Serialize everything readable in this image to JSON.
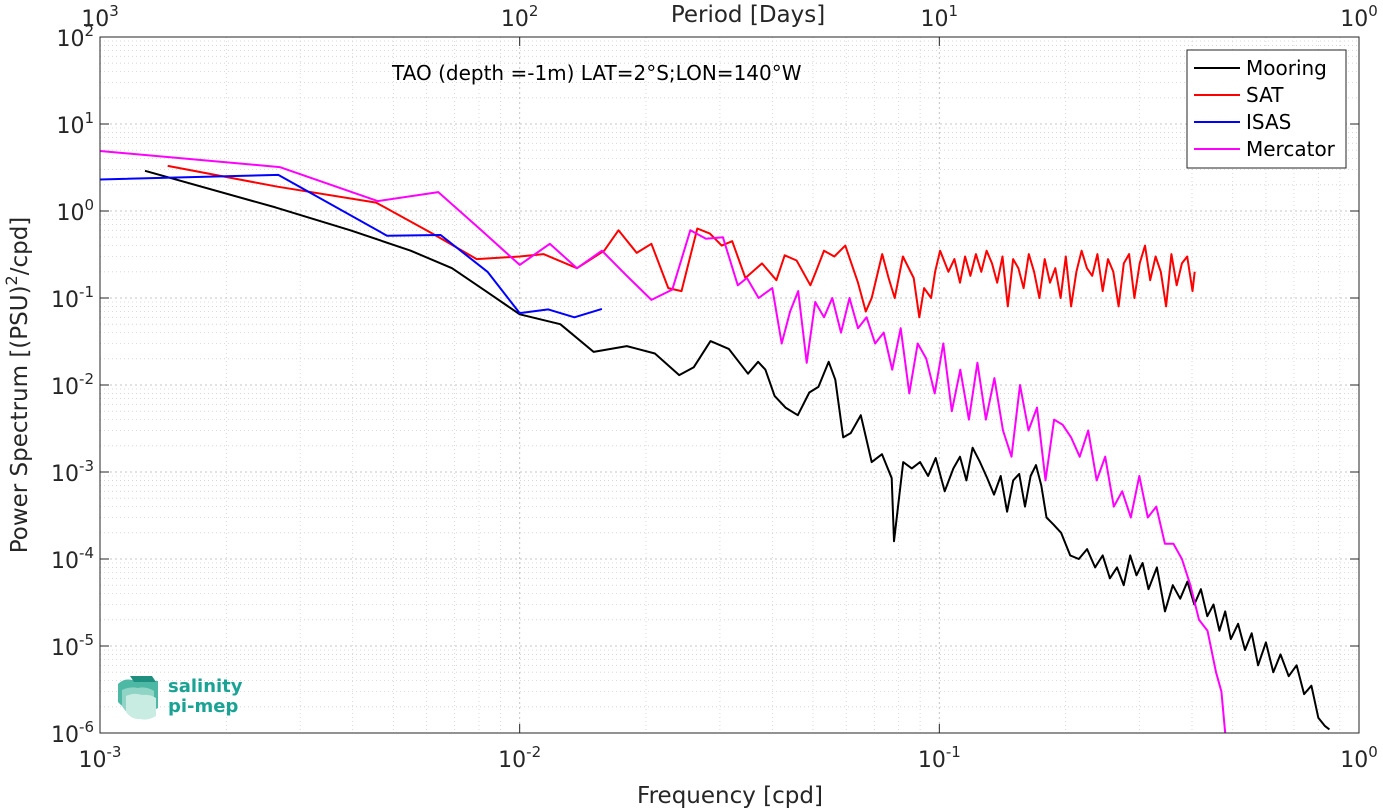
{
  "chart_data": {
    "type": "line",
    "title": "TAO (depth =-1m) LAT=2°S;LON=140°W",
    "xlabel": "Frequency [cpd]",
    "ylabel": "Power Spectrum [(PSU)²/cpd]",
    "top_xlabel": "Period [Days]",
    "x_scale": "log",
    "y_scale": "log",
    "xlim": [
      0.001,
      1
    ],
    "ylim": [
      1e-06,
      100
    ],
    "grid": true,
    "legend_position": "top-right",
    "x_ticks": [
      {
        "value": 0.001,
        "base": "10",
        "exp": "-3"
      },
      {
        "value": 0.01,
        "base": "10",
        "exp": "-2"
      },
      {
        "value": 0.1,
        "base": "10",
        "exp": "-1"
      },
      {
        "value": 1,
        "base": "10",
        "exp": "0"
      }
    ],
    "top_ticks": [
      {
        "value": 1000,
        "base": "10",
        "exp": "3"
      },
      {
        "value": 100,
        "base": "10",
        "exp": "2"
      },
      {
        "value": 10,
        "base": "10",
        "exp": "1"
      },
      {
        "value": 1,
        "base": "10",
        "exp": "0"
      }
    ],
    "y_ticks": [
      {
        "value": 1e-06,
        "base": "10",
        "exp": "-6"
      },
      {
        "value": 1e-05,
        "base": "10",
        "exp": "-5"
      },
      {
        "value": 0.0001,
        "base": "10",
        "exp": "-4"
      },
      {
        "value": 0.001,
        "base": "10",
        "exp": "-3"
      },
      {
        "value": 0.01,
        "base": "10",
        "exp": "-2"
      },
      {
        "value": 0.1,
        "base": "10",
        "exp": "-1"
      },
      {
        "value": 1,
        "base": "10",
        "exp": "0"
      },
      {
        "value": 10,
        "base": "10",
        "exp": "1"
      },
      {
        "value": 100,
        "base": "10",
        "exp": "2"
      }
    ],
    "series": [
      {
        "name": "Mooring",
        "color": "#000000",
        "x": [
          0.00128,
          0.00262,
          0.00395,
          0.0055,
          0.0069,
          0.0083,
          0.01,
          0.0125,
          0.015,
          0.018,
          0.021,
          0.024,
          0.026,
          0.0285,
          0.0315,
          0.035,
          0.037,
          0.0385,
          0.0405,
          0.043,
          0.046,
          0.049,
          0.0515,
          0.0545,
          0.0565,
          0.059,
          0.0615,
          0.065,
          0.069,
          0.073,
          0.077,
          0.078,
          0.082,
          0.086,
          0.09,
          0.094,
          0.098,
          0.103,
          0.108,
          0.112,
          0.116,
          0.12,
          0.125,
          0.13,
          0.135,
          0.14,
          0.145,
          0.15,
          0.155,
          0.16,
          0.165,
          0.17,
          0.175,
          0.18,
          0.187,
          0.195,
          0.205,
          0.215,
          0.225,
          0.235,
          0.245,
          0.255,
          0.265,
          0.275,
          0.285,
          0.295,
          0.305,
          0.315,
          0.33,
          0.345,
          0.36,
          0.375,
          0.39,
          0.405,
          0.42,
          0.435,
          0.45,
          0.465,
          0.48,
          0.495,
          0.515,
          0.535,
          0.555,
          0.575,
          0.6,
          0.625,
          0.65,
          0.68,
          0.71,
          0.74,
          0.77,
          0.8,
          0.83,
          0.85
        ],
        "values": [
          2.9,
          1.1,
          0.6,
          0.35,
          0.22,
          0.12,
          0.065,
          0.05,
          0.024,
          0.028,
          0.023,
          0.013,
          0.016,
          0.032,
          0.026,
          0.0135,
          0.0185,
          0.015,
          0.0075,
          0.0055,
          0.0045,
          0.0082,
          0.0095,
          0.0185,
          0.0115,
          0.0025,
          0.0028,
          0.0045,
          0.0013,
          0.0016,
          0.00085,
          0.00016,
          0.0013,
          0.0011,
          0.0013,
          0.0009,
          0.00145,
          0.0006,
          0.0011,
          0.0015,
          0.0008,
          0.0019,
          0.0013,
          0.00085,
          0.00055,
          0.0009,
          0.00035,
          0.0008,
          0.00095,
          0.0004,
          0.0009,
          0.0012,
          0.0007,
          0.0003,
          0.00025,
          0.0002,
          0.00011,
          0.0001,
          0.00013,
          8e-05,
          0.00011,
          6e-05,
          8e-05,
          5e-05,
          0.00011,
          6.5e-05,
          9e-05,
          4.5e-05,
          8e-05,
          2.5e-05,
          5e-05,
          3.5e-05,
          5.5e-05,
          3e-05,
          4.5e-05,
          2.2e-05,
          3e-05,
          1.5e-05,
          2.5e-05,
          1.2e-05,
          1.8e-05,
          9e-06,
          1.4e-05,
          6e-06,
          1.1e-05,
          5e-06,
          8e-06,
          4.5e-06,
          6e-06,
          2.8e-06,
          3.5e-06,
          1.5e-06,
          1.2e-06,
          1.1e-06
        ]
      },
      {
        "name": "SAT",
        "color": "#ff0000",
        "x": [
          0.00145,
          0.00265,
          0.00455,
          0.0062,
          0.0079,
          0.01,
          0.0114,
          0.0137,
          0.0159,
          0.0172,
          0.019,
          0.0206,
          0.0226,
          0.0243,
          0.0265,
          0.0284,
          0.0303,
          0.0321,
          0.0345,
          0.0378,
          0.0409,
          0.0428,
          0.0457,
          0.0493,
          0.0508,
          0.0531,
          0.0562,
          0.0597,
          0.064,
          0.0668,
          0.069,
          0.0731,
          0.0757,
          0.0783,
          0.0819,
          0.0869,
          0.0896,
          0.092,
          0.0956,
          0.0977,
          0.1004,
          0.1051,
          0.1086,
          0.112,
          0.1152,
          0.1186,
          0.1222,
          0.1259,
          0.1296,
          0.1335,
          0.1374,
          0.1414,
          0.1456,
          0.1499,
          0.1543,
          0.1588,
          0.1634,
          0.1682,
          0.1732,
          0.1783,
          0.1835,
          0.1889,
          0.1945,
          0.2002,
          0.206,
          0.2121,
          0.2183,
          0.2247,
          0.2313,
          0.2381,
          0.2451,
          0.2523,
          0.2597,
          0.2674,
          0.2752,
          0.2833,
          0.2916,
          0.3002,
          0.309,
          0.3181,
          0.3275,
          0.3371,
          0.347,
          0.3572,
          0.3677,
          0.3785,
          0.3897,
          0.4011,
          0.406
        ],
        "values": [
          3.3,
          1.9,
          1.25,
          0.55,
          0.28,
          0.3,
          0.32,
          0.22,
          0.35,
          0.6,
          0.33,
          0.42,
          0.13,
          0.12,
          0.63,
          0.55,
          0.4,
          0.45,
          0.17,
          0.25,
          0.16,
          0.31,
          0.27,
          0.14,
          0.2,
          0.35,
          0.3,
          0.4,
          0.15,
          0.07,
          0.1,
          0.32,
          0.17,
          0.1,
          0.3,
          0.17,
          0.06,
          0.13,
          0.1,
          0.2,
          0.35,
          0.2,
          0.28,
          0.15,
          0.3,
          0.18,
          0.32,
          0.2,
          0.35,
          0.25,
          0.15,
          0.3,
          0.08,
          0.28,
          0.22,
          0.13,
          0.32,
          0.2,
          0.1,
          0.28,
          0.15,
          0.22,
          0.1,
          0.3,
          0.08,
          0.2,
          0.35,
          0.22,
          0.18,
          0.32,
          0.12,
          0.28,
          0.2,
          0.08,
          0.25,
          0.32,
          0.1,
          0.25,
          0.4,
          0.16,
          0.3,
          0.2,
          0.08,
          0.32,
          0.14,
          0.25,
          0.3,
          0.12,
          0.2
        ]
      },
      {
        "name": "ISAS",
        "color": "#0000ff",
        "x": [
          0.001,
          0.00266,
          0.00483,
          0.00648,
          0.00838,
          0.01,
          0.0117,
          0.0135,
          0.0157
        ],
        "values": [
          2.3,
          2.6,
          0.52,
          0.53,
          0.2,
          0.067,
          0.074,
          0.06,
          0.075
        ]
      },
      {
        "name": "Mercator",
        "color": "#ff00ff",
        "x": [
          0.001,
          0.00268,
          0.00459,
          0.0064,
          0.0081,
          0.01,
          0.0118,
          0.0137,
          0.0157,
          0.018,
          0.0206,
          0.0231,
          0.0255,
          0.0278,
          0.0305,
          0.0331,
          0.0348,
          0.0371,
          0.04,
          0.0421,
          0.0441,
          0.0461,
          0.0483,
          0.0506,
          0.0531,
          0.0556,
          0.0583,
          0.0611,
          0.064,
          0.0671,
          0.0703,
          0.0737,
          0.0772,
          0.0809,
          0.0848,
          0.0888,
          0.0931,
          0.0975,
          0.1022,
          0.1071,
          0.1122,
          0.1176,
          0.1232,
          0.1291,
          0.1353,
          0.1418,
          0.1486,
          0.1557,
          0.1631,
          0.1709,
          0.1791,
          0.1877,
          0.1967,
          0.2061,
          0.216,
          0.2263,
          0.2371,
          0.2485,
          0.2604,
          0.2728,
          0.2859,
          0.2996,
          0.3139,
          0.3289,
          0.3447,
          0.3612,
          0.3785,
          0.3966,
          0.4156,
          0.4355,
          0.4563,
          0.47,
          0.48
        ],
        "values": [
          4.9,
          3.2,
          1.3,
          1.65,
          0.6,
          0.24,
          0.42,
          0.22,
          0.35,
          0.18,
          0.095,
          0.125,
          0.6,
          0.48,
          0.5,
          0.14,
          0.17,
          0.1,
          0.13,
          0.03,
          0.07,
          0.12,
          0.018,
          0.09,
          0.06,
          0.1,
          0.04,
          0.1,
          0.045,
          0.06,
          0.03,
          0.04,
          0.015,
          0.045,
          0.008,
          0.03,
          0.02,
          0.008,
          0.03,
          0.005,
          0.015,
          0.004,
          0.018,
          0.004,
          0.012,
          0.003,
          0.0015,
          0.01,
          0.003,
          0.0055,
          0.0008,
          0.004,
          0.0035,
          0.0025,
          0.0015,
          0.003,
          0.0008,
          0.0015,
          0.0004,
          0.0006,
          0.0003,
          0.0009,
          0.0003,
          0.0004,
          0.00015,
          0.00015,
          0.0001,
          5e-05,
          2e-05,
          1.5e-05,
          5e-06,
          3e-06,
          1e-06
        ]
      }
    ]
  },
  "logo": {
    "line1": "salinity",
    "line2": "pi-mep"
  }
}
